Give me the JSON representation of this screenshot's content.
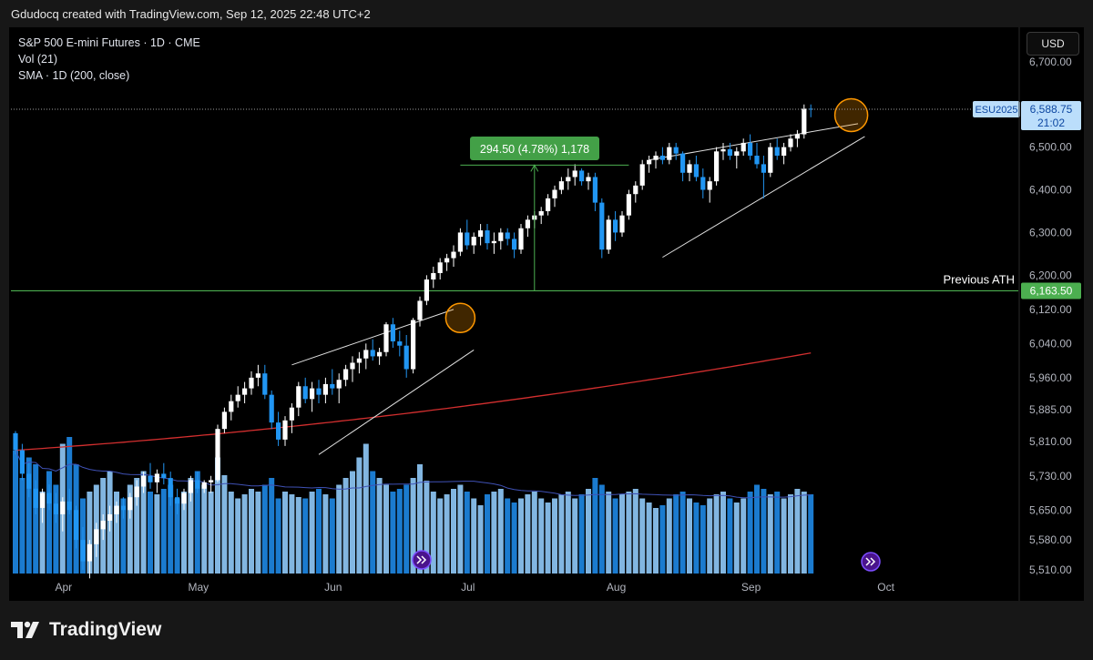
{
  "header": {
    "attribution": "Gdudocq created with TradingView.com, Sep 12, 2025 22:48 UTC+2"
  },
  "legend": {
    "line1": "S&P 500 E-mini Futures · 1D · CME",
    "line2": "Vol (21)",
    "line3": "SMA · 1D (200, close)"
  },
  "currency_button": "USD",
  "footer": {
    "brand": "TradingView"
  },
  "colors": {
    "background": "#000000",
    "bull_candle": "#ffffff",
    "bear_candle": "#2196f3",
    "sma": "#d32f2f",
    "volume_ma": "#3f51b5",
    "ath_line": "#4caf50",
    "highlight_circle": "#ff9800"
  },
  "chart_data": {
    "type": "candlestick",
    "symbol": "ESU2025",
    "y_ticks": [
      "6,700.00",
      "6,500.00",
      "6,400.00",
      "6,300.00",
      "6,200.00",
      "6,120.00",
      "6,040.00",
      "5,960.00",
      "5,885.00",
      "5,810.00",
      "5,730.00",
      "5,650.00",
      "5,580.00",
      "5,510.00"
    ],
    "y_tick_values": [
      6700,
      6500,
      6400,
      6300,
      6200,
      6120,
      6040,
      5960,
      5885,
      5810,
      5730,
      5650,
      5580,
      5510
    ],
    "y_range": [
      5480,
      6770
    ],
    "x_labels": [
      "Apr",
      "May",
      "Jun",
      "Jul",
      "Aug",
      "Sep",
      "Oct"
    ],
    "x_label_index": [
      2,
      22,
      42,
      62,
      84,
      104,
      124
    ],
    "candles": [
      [
        5830,
        5835,
        5780,
        5790
      ],
      [
        5790,
        5805,
        5720,
        5735
      ],
      [
        5735,
        5760,
        5680,
        5700
      ],
      [
        5700,
        5720,
        5640,
        5655
      ],
      [
        5655,
        5700,
        5620,
        5690
      ],
      [
        5690,
        5710,
        5650,
        5665
      ],
      [
        5665,
        5690,
        5620,
        5640
      ],
      [
        5640,
        5680,
        5600,
        5670
      ],
      [
        5670,
        5700,
        5640,
        5650
      ],
      [
        5650,
        5660,
        5560,
        5580
      ],
      [
        5580,
        5610,
        5510,
        5530
      ],
      [
        5530,
        5580,
        5490,
        5570
      ],
      [
        5570,
        5620,
        5540,
        5605
      ],
      [
        5605,
        5640,
        5580,
        5625
      ],
      [
        5625,
        5660,
        5600,
        5640
      ],
      [
        5640,
        5670,
        5620,
        5660
      ],
      [
        5660,
        5680,
        5630,
        5650
      ],
      [
        5650,
        5690,
        5630,
        5680
      ],
      [
        5680,
        5720,
        5660,
        5705
      ],
      [
        5705,
        5740,
        5690,
        5730
      ],
      [
        5730,
        5760,
        5700,
        5715
      ],
      [
        5715,
        5745,
        5690,
        5735
      ],
      [
        5735,
        5760,
        5710,
        5725
      ],
      [
        5725,
        5740,
        5660,
        5680
      ],
      [
        5680,
        5700,
        5640,
        5665
      ],
      [
        5665,
        5700,
        5650,
        5690
      ],
      [
        5690,
        5730,
        5670,
        5720
      ],
      [
        5720,
        5740,
        5690,
        5700
      ],
      [
        5700,
        5720,
        5690,
        5715
      ],
      [
        5715,
        5730,
        5690,
        5720
      ],
      [
        5720,
        5850,
        5715,
        5840
      ],
      [
        5840,
        5890,
        5830,
        5880
      ],
      [
        5880,
        5920,
        5860,
        5905
      ],
      [
        5905,
        5940,
        5890,
        5920
      ],
      [
        5920,
        5950,
        5900,
        5935
      ],
      [
        5935,
        5975,
        5920,
        5960
      ],
      [
        5960,
        5990,
        5940,
        5970
      ],
      [
        5970,
        5990,
        5910,
        5920
      ],
      [
        5920,
        5930,
        5840,
        5855
      ],
      [
        5855,
        5880,
        5800,
        5815
      ],
      [
        5815,
        5870,
        5800,
        5860
      ],
      [
        5860,
        5900,
        5830,
        5890
      ],
      [
        5890,
        5950,
        5870,
        5940
      ],
      [
        5940,
        5960,
        5900,
        5910
      ],
      [
        5910,
        5950,
        5880,
        5935
      ],
      [
        5935,
        5955,
        5900,
        5920
      ],
      [
        5920,
        5960,
        5900,
        5945
      ],
      [
        5945,
        5980,
        5920,
        5935
      ],
      [
        5935,
        5970,
        5900,
        5955
      ],
      [
        5955,
        5990,
        5940,
        5980
      ],
      [
        5980,
        6010,
        5950,
        5995
      ],
      [
        5995,
        6020,
        5970,
        6005
      ],
      [
        6005,
        6040,
        5980,
        6025
      ],
      [
        6025,
        6050,
        6000,
        6010
      ],
      [
        6010,
        6030,
        5990,
        6020
      ],
      [
        6020,
        6090,
        6010,
        6085
      ],
      [
        6085,
        6100,
        6030,
        6045
      ],
      [
        6045,
        6070,
        6010,
        6035
      ],
      [
        6035,
        6060,
        5960,
        5980
      ],
      [
        5980,
        6100,
        5970,
        6095
      ],
      [
        6095,
        6150,
        6080,
        6140
      ],
      [
        6140,
        6200,
        6130,
        6190
      ],
      [
        6190,
        6220,
        6170,
        6205
      ],
      [
        6205,
        6240,
        6190,
        6230
      ],
      [
        6230,
        6250,
        6210,
        6240
      ],
      [
        6240,
        6270,
        6220,
        6255
      ],
      [
        6255,
        6310,
        6245,
        6300
      ],
      [
        6300,
        6330,
        6260,
        6270
      ],
      [
        6270,
        6300,
        6250,
        6290
      ],
      [
        6290,
        6320,
        6270,
        6305
      ],
      [
        6305,
        6320,
        6260,
        6275
      ],
      [
        6275,
        6300,
        6250,
        6280
      ],
      [
        6280,
        6310,
        6260,
        6300
      ],
      [
        6300,
        6310,
        6270,
        6285
      ],
      [
        6285,
        6300,
        6240,
        6260
      ],
      [
        6260,
        6320,
        6250,
        6310
      ],
      [
        6310,
        6340,
        6290,
        6330
      ],
      [
        6330,
        6350,
        6310,
        6340
      ],
      [
        6340,
        6360,
        6320,
        6350
      ],
      [
        6350,
        6390,
        6340,
        6380
      ],
      [
        6380,
        6410,
        6360,
        6400
      ],
      [
        6400,
        6430,
        6390,
        6420
      ],
      [
        6420,
        6450,
        6400,
        6430
      ],
      [
        6430,
        6460,
        6410,
        6445
      ],
      [
        6445,
        6450,
        6410,
        6420
      ],
      [
        6420,
        6440,
        6400,
        6430
      ],
      [
        6430,
        6440,
        6350,
        6370
      ],
      [
        6370,
        6380,
        6240,
        6260
      ],
      [
        6260,
        6340,
        6250,
        6330
      ],
      [
        6330,
        6350,
        6280,
        6300
      ],
      [
        6300,
        6350,
        6290,
        6340
      ],
      [
        6340,
        6400,
        6330,
        6390
      ],
      [
        6390,
        6420,
        6370,
        6410
      ],
      [
        6410,
        6470,
        6400,
        6460
      ],
      [
        6460,
        6480,
        6440,
        6470
      ],
      [
        6470,
        6490,
        6450,
        6480
      ],
      [
        6480,
        6500,
        6460,
        6470
      ],
      [
        6470,
        6510,
        6460,
        6500
      ],
      [
        6500,
        6510,
        6470,
        6485
      ],
      [
        6485,
        6490,
        6420,
        6440
      ],
      [
        6440,
        6470,
        6420,
        6460
      ],
      [
        6460,
        6480,
        6420,
        6430
      ],
      [
        6430,
        6450,
        6380,
        6400
      ],
      [
        6400,
        6430,
        6370,
        6420
      ],
      [
        6420,
        6500,
        6410,
        6490
      ],
      [
        6490,
        6510,
        6470,
        6495
      ],
      [
        6495,
        6510,
        6470,
        6480
      ],
      [
        6480,
        6500,
        6450,
        6490
      ],
      [
        6490,
        6520,
        6480,
        6510
      ],
      [
        6510,
        6530,
        6470,
        6480
      ],
      [
        6480,
        6510,
        6450,
        6460
      ],
      [
        6460,
        6480,
        6380,
        6440
      ],
      [
        6440,
        6510,
        6430,
        6500
      ],
      [
        6500,
        6520,
        6470,
        6480
      ],
      [
        6480,
        6510,
        6460,
        6500
      ],
      [
        6500,
        6530,
        6490,
        6520
      ],
      [
        6520,
        6540,
        6500,
        6530
      ],
      [
        6530,
        6600,
        6520,
        6590
      ],
      [
        6590,
        6600,
        6570,
        6589
      ]
    ],
    "volume": [
      90,
      70,
      85,
      80,
      60,
      75,
      65,
      95,
      100,
      80,
      55,
      60,
      65,
      70,
      75,
      60,
      55,
      65,
      70,
      75,
      60,
      58,
      62,
      65,
      55,
      60,
      70,
      75,
      65,
      60,
      85,
      72,
      60,
      55,
      58,
      62,
      60,
      65,
      70,
      55,
      60,
      58,
      56,
      55,
      60,
      62,
      58,
      55,
      65,
      70,
      75,
      85,
      95,
      75,
      70,
      65,
      60,
      62,
      65,
      70,
      80,
      68,
      60,
      55,
      58,
      62,
      65,
      60,
      55,
      50,
      58,
      60,
      62,
      55,
      52,
      55,
      58,
      60,
      55,
      52,
      55,
      58,
      60,
      55,
      58,
      62,
      70,
      65,
      60,
      55,
      58,
      60,
      62,
      55,
      52,
      48,
      50,
      55,
      58,
      60,
      55,
      52,
      50,
      55,
      58,
      60,
      55,
      52,
      55,
      60,
      65,
      62,
      58,
      60,
      55,
      58,
      62,
      60,
      58
    ],
    "sma_200": {
      "start": 5790,
      "end": 6018
    },
    "levels": [
      {
        "label": "Previous ATH",
        "value": 6163.5,
        "tag": "6,163.50"
      }
    ],
    "last_price": "6,588.75",
    "countdown": "21:02",
    "measure_label": "294.50 (4.78%) 1,178"
  }
}
